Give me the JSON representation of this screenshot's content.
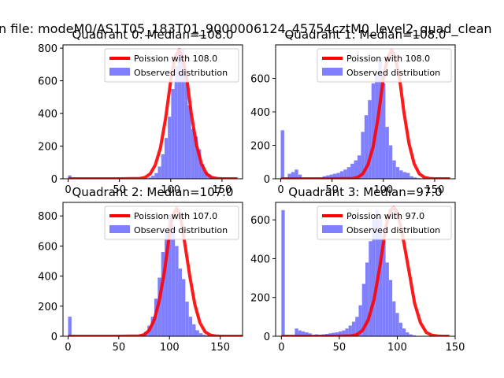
{
  "suptitle": "n file: modeM0/AS1T05_183T01_9000006124_45754cztM0_level2_quad_clean",
  "colors": {
    "poisson": "#ff0000",
    "observed": "#8080ff"
  },
  "chart_data": [
    {
      "type": "bar",
      "title": "Quadrant 0: Median=108.0",
      "xlim": [
        -5,
        170
      ],
      "ylim": [
        0,
        820
      ],
      "xticks": [
        0,
        50,
        100,
        150
      ],
      "yticks": [
        0,
        200,
        400,
        600,
        800
      ],
      "legend_placement": "upper-right",
      "legend": [
        "Poission with 108.0",
        "Observed distribution"
      ],
      "poisson_mean": 108.0,
      "bin_edges": [
        0,
        3.24,
        6.48,
        9.72,
        12.96,
        16.2,
        19.44,
        22.68,
        25.92,
        29.16,
        32.4,
        35.64,
        38.88,
        42.12,
        45.36,
        48.6,
        51.84,
        55.08,
        58.32,
        61.56,
        64.8,
        68.04,
        71.28,
        74.52,
        77.76,
        81.0,
        84.24,
        87.48,
        90.72,
        93.96,
        97.2,
        100.44,
        103.68,
        106.92,
        110.16,
        113.4,
        116.64,
        119.88,
        123.12,
        126.36,
        129.6,
        132.84,
        136.08,
        139.32,
        142.56,
        145.8,
        149.04,
        152.28,
        155.52,
        158.76,
        162.0
      ],
      "counts": [
        20,
        0,
        0,
        0,
        0,
        0,
        0,
        0,
        0,
        0,
        0,
        0,
        0,
        0,
        0,
        0,
        0,
        0,
        0,
        0,
        0,
        0,
        0,
        3,
        8,
        18,
        35,
        75,
        150,
        250,
        380,
        550,
        690,
        800,
        790,
        660,
        450,
        305,
        260,
        180,
        90,
        40,
        25,
        10,
        8,
        5,
        3,
        2,
        1,
        1
      ],
      "poisson_curve": {
        "x": [
          0,
          50,
          70,
          75,
          80,
          85,
          90,
          95,
          100,
          104,
          108,
          112,
          116,
          120,
          125,
          130,
          135,
          140,
          145,
          150,
          165
        ],
        "y": [
          0,
          0,
          2,
          8,
          30,
          85,
          190,
          370,
          600,
          740,
          790,
          740,
          600,
          400,
          210,
          90,
          30,
          8,
          2,
          0,
          0
        ]
      }
    },
    {
      "type": "bar",
      "title": "Quadrant 1: Median=108.0",
      "xlim": [
        -5,
        170
      ],
      "ylim": [
        0,
        800
      ],
      "xticks": [
        0,
        50,
        100,
        150
      ],
      "yticks": [
        0,
        200,
        400,
        600
      ],
      "legend_placement": "upper-right",
      "legend": [
        "Poission with 108.0",
        "Observed distribution"
      ],
      "poisson_mean": 108.0,
      "bin_edges": [
        0,
        3.4,
        6.8,
        10.2,
        13.6,
        17.0,
        20.4,
        23.8,
        27.2,
        30.6,
        34.0,
        37.4,
        40.8,
        44.2,
        47.6,
        51.0,
        54.4,
        57.8,
        61.2,
        64.6,
        68.0,
        71.4,
        74.8,
        78.2,
        81.6,
        85.0,
        88.4,
        91.8,
        95.2,
        98.6,
        102.0,
        105.4,
        108.8,
        112.2,
        115.6,
        119.0,
        122.4,
        125.8,
        129.2,
        132.6,
        136.0,
        139.4,
        142.8,
        146.2,
        149.6,
        153.0,
        156.4,
        159.8,
        163.2,
        166.6,
        170.0
      ],
      "counts": [
        290,
        0,
        30,
        40,
        55,
        25,
        0,
        0,
        0,
        0,
        0,
        5,
        15,
        20,
        25,
        30,
        35,
        45,
        55,
        70,
        90,
        110,
        140,
        280,
        380,
        470,
        570,
        630,
        710,
        570,
        310,
        200,
        110,
        70,
        50,
        40,
        35,
        15,
        8,
        4,
        2,
        1,
        0,
        0,
        0,
        0,
        0,
        0,
        0,
        0
      ],
      "poisson_curve": {
        "x": [
          0,
          50,
          70,
          75,
          80,
          85,
          90,
          95,
          100,
          104,
          108,
          112,
          116,
          120,
          125,
          130,
          135,
          140,
          145,
          150,
          165
        ],
        "y": [
          0,
          0,
          2,
          8,
          30,
          85,
          190,
          370,
          600,
          720,
          770,
          720,
          590,
          400,
          210,
          90,
          30,
          8,
          2,
          0,
          0
        ]
      }
    },
    {
      "type": "bar",
      "title": "Quadrant 2: Median=107.0",
      "xlim": [
        -5,
        172
      ],
      "ylim": [
        0,
        890
      ],
      "xticks": [
        0,
        50,
        100,
        150
      ],
      "yticks": [
        0,
        200,
        400,
        600,
        800
      ],
      "legend_placement": "upper-right",
      "legend": [
        "Poission with 107.0",
        "Observed distribution"
      ],
      "poisson_mean": 107.0,
      "bin_edges": [
        0,
        3.4,
        6.8,
        10.2,
        13.6,
        17.0,
        20.4,
        23.8,
        27.2,
        30.6,
        34.0,
        37.4,
        40.8,
        44.2,
        47.6,
        51.0,
        54.4,
        57.8,
        61.2,
        64.6,
        68.0,
        71.4,
        74.8,
        78.2,
        81.6,
        85.0,
        88.4,
        91.8,
        95.2,
        98.6,
        102.0,
        105.4,
        108.8,
        112.2,
        115.6,
        119.0,
        122.4,
        125.8,
        129.2,
        132.6,
        136.0,
        139.4,
        142.8,
        146.2,
        149.6,
        153.0,
        156.4,
        159.8,
        163.2,
        166.6,
        170.0
      ],
      "counts": [
        130,
        0,
        0,
        0,
        0,
        0,
        0,
        0,
        0,
        0,
        0,
        0,
        0,
        0,
        0,
        0,
        0,
        0,
        0,
        0,
        3,
        10,
        30,
        70,
        130,
        250,
        390,
        560,
        700,
        810,
        740,
        600,
        450,
        380,
        230,
        130,
        80,
        40,
        20,
        10,
        5,
        3,
        1,
        0,
        0,
        0,
        0,
        0,
        0,
        0
      ],
      "poisson_curve": {
        "x": [
          0,
          50,
          70,
          75,
          80,
          85,
          90,
          95,
          100,
          103,
          107,
          111,
          115,
          120,
          125,
          130,
          135,
          140,
          145,
          150,
          172
        ],
        "y": [
          0,
          0,
          2,
          10,
          40,
          110,
          240,
          430,
          680,
          800,
          850,
          790,
          620,
          400,
          210,
          90,
          30,
          8,
          2,
          0,
          0
        ]
      }
    },
    {
      "type": "bar",
      "title": "Quadrant 3: Median=97.0",
      "xlim": [
        -5,
        150
      ],
      "ylim": [
        0,
        690
      ],
      "xticks": [
        0,
        50,
        100,
        150
      ],
      "yticks": [
        0,
        200,
        400,
        600
      ],
      "legend_placement": "upper-right",
      "legend": [
        "Poission with 97.0",
        "Observed distribution"
      ],
      "poisson_mean": 97.0,
      "bin_edges": [
        0,
        2.9,
        5.8,
        8.7,
        11.6,
        14.5,
        17.4,
        20.3,
        23.2,
        26.1,
        29.0,
        31.9,
        34.8,
        37.7,
        40.6,
        43.5,
        46.4,
        49.3,
        52.2,
        55.1,
        58.0,
        60.9,
        63.8,
        66.7,
        69.6,
        72.5,
        75.4,
        78.3,
        81.2,
        84.1,
        87.0,
        89.9,
        92.8,
        95.7,
        98.6,
        101.5,
        104.4,
        107.3,
        110.2,
        113.1,
        116.0,
        118.9,
        121.8,
        124.7,
        127.6,
        130.5,
        133.4,
        136.3,
        139.2,
        142.1,
        145.0
      ],
      "counts": [
        650,
        0,
        0,
        0,
        40,
        30,
        25,
        20,
        15,
        5,
        10,
        8,
        10,
        12,
        15,
        18,
        20,
        25,
        30,
        40,
        55,
        75,
        100,
        160,
        270,
        380,
        490,
        600,
        650,
        600,
        490,
        380,
        290,
        180,
        120,
        70,
        40,
        20,
        10,
        5,
        2,
        1,
        0,
        0,
        0,
        0,
        0,
        0,
        0,
        0
      ],
      "poisson_curve": {
        "x": [
          0,
          45,
          60,
          65,
          70,
          75,
          80,
          85,
          90,
          94,
          97,
          100,
          104,
          110,
          115,
          120,
          125,
          130,
          135,
          140,
          145
        ],
        "y": [
          0,
          0,
          2,
          8,
          30,
          85,
          190,
          360,
          560,
          650,
          665,
          640,
          540,
          340,
          170,
          70,
          20,
          5,
          1,
          0,
          0
        ]
      }
    }
  ]
}
